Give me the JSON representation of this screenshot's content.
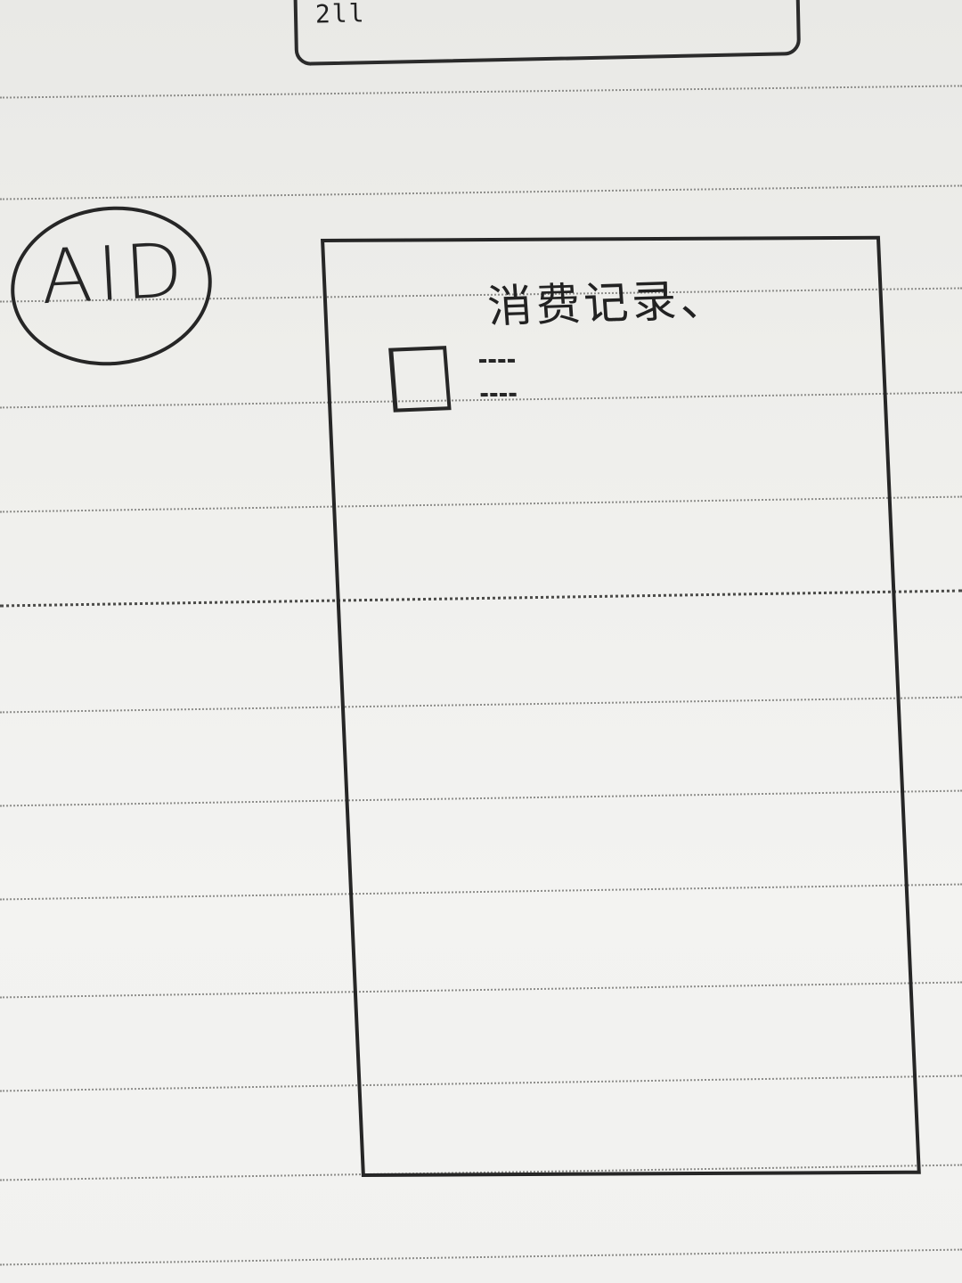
{
  "sketch": {
    "top_fragment_text": "2ll",
    "label": "AID",
    "screen": {
      "title": "消费记录、",
      "items": [
        {
          "checkbox": "unchecked",
          "text_placeholder": "scribble-lines"
        }
      ]
    }
  },
  "colors": {
    "paper": "#efefec",
    "ink": "#262626",
    "rule": "#8d8d8a"
  }
}
